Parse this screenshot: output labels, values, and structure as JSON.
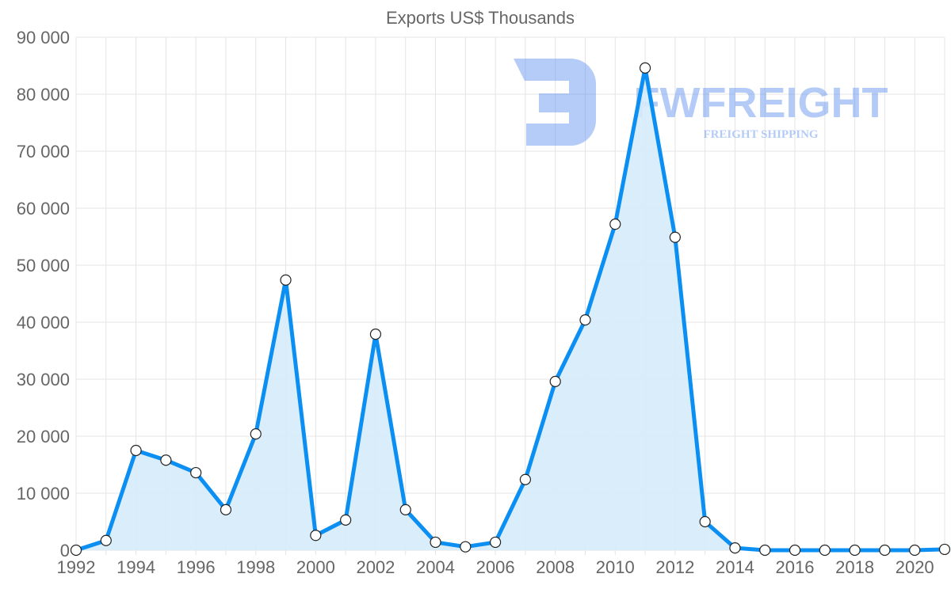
{
  "chart_data": {
    "type": "area",
    "title": "Exports US$ Thousands",
    "xlabel": "",
    "ylabel": "",
    "ylim": [
      0,
      90000
    ],
    "grid": true,
    "legend": "none",
    "x": [
      1992,
      1993,
      1994,
      1995,
      1996,
      1997,
      1998,
      1999,
      2000,
      2001,
      2002,
      2003,
      2004,
      2005,
      2006,
      2007,
      2008,
      2009,
      2010,
      2011,
      2012,
      2013,
      2014,
      2015,
      2016,
      2017,
      2018,
      2019,
      2020,
      2021
    ],
    "series": [
      {
        "name": "Exports US$ Thousands",
        "color": "#0b8ff2",
        "fill": "#d6ebfb",
        "values": [
          0,
          1700,
          17500,
          15800,
          13600,
          7100,
          20400,
          47400,
          2600,
          5300,
          37900,
          7100,
          1400,
          600,
          1400,
          12400,
          29600,
          40400,
          57200,
          84600,
          54900,
          5000,
          400,
          0,
          0,
          0,
          0,
          0,
          0,
          150
        ]
      }
    ],
    "y_ticks": [
      "0",
      "10 000",
      "20 000",
      "30 000",
      "40 000",
      "50 000",
      "60 000",
      "70 000",
      "80 000",
      "90 000"
    ],
    "y_tick_values": [
      0,
      10000,
      20000,
      30000,
      40000,
      50000,
      60000,
      70000,
      80000,
      90000
    ],
    "x_ticks": [
      "1992",
      "1994",
      "1996",
      "1998",
      "2000",
      "2002",
      "2004",
      "2006",
      "2008",
      "2010",
      "2012",
      "2014",
      "2016",
      "2018",
      "2020"
    ]
  },
  "watermark": {
    "brand": "FWFREIGHT",
    "tagline": "FREIGHT SHIPPING"
  }
}
